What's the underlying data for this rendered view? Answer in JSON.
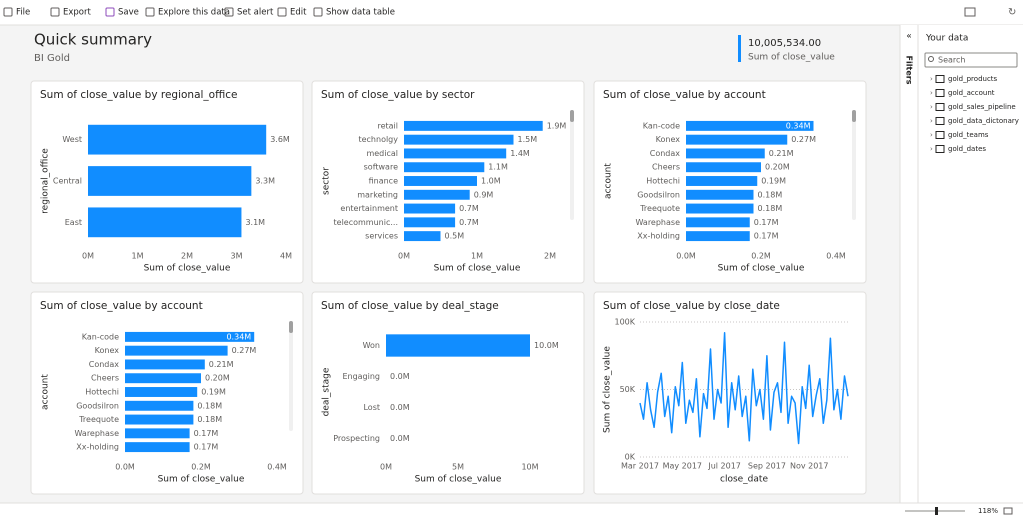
{
  "toolbar": {
    "items": [
      "File",
      "Export",
      "Save",
      "Explore this data",
      "Set alert",
      "Edit",
      "Show data table"
    ]
  },
  "header": {
    "title": "Quick summary",
    "subtitle": "BI Gold"
  },
  "kpi": {
    "value": "10,005,534.00",
    "label": "Sum of close_value"
  },
  "filters_tab": "Filters",
  "data_pane": {
    "title": "Your data",
    "search_placeholder": "Search",
    "tables": [
      "gold_products",
      "gold_account",
      "gold_sales_pipeline",
      "gold_data_dictonary",
      "gold_teams",
      "gold_dates"
    ]
  },
  "zoom": "118%",
  "chart_data": [
    {
      "type": "bar",
      "title": "Sum of close_value by regional_office",
      "x_label": "Sum of close_value",
      "y_label": "regional_office",
      "categories": [
        "West",
        "Central",
        "East"
      ],
      "values": [
        3600000,
        3300000,
        3100000
      ],
      "value_labels": [
        "3.6M",
        "3.3M",
        "3.1M"
      ],
      "color": "#118dff",
      "xlim": [
        0,
        4000000
      ],
      "xticks": [
        {
          "value": 0,
          "label": "0M"
        },
        {
          "value": 1000000,
          "label": "1M"
        },
        {
          "value": 2000000,
          "label": "2M"
        },
        {
          "value": 3000000,
          "label": "3M"
        },
        {
          "value": 4000000,
          "label": "4M"
        }
      ]
    },
    {
      "type": "bar",
      "title": "Sum of close_value by sector",
      "x_label": "Sum of close_value",
      "y_label": "sector",
      "categories": [
        "retail",
        "technolgy",
        "medical",
        "software",
        "finance",
        "marketing",
        "entertainment",
        "telecommunic...",
        "services"
      ],
      "values": [
        1900000,
        1500000,
        1400000,
        1100000,
        1000000,
        900000,
        700000,
        700000,
        500000
      ],
      "value_labels": [
        "1.9M",
        "1.5M",
        "1.4M",
        "1.1M",
        "1.0M",
        "0.9M",
        "0.7M",
        "0.7M",
        "0.5M"
      ],
      "color": "#118dff",
      "xlim": [
        0,
        2000000
      ],
      "xticks": [
        {
          "value": 0,
          "label": "0M"
        },
        {
          "value": 1000000,
          "label": "1M"
        },
        {
          "value": 2000000,
          "label": "2M"
        }
      ]
    },
    {
      "type": "bar",
      "title": "Sum of close_value by account",
      "x_label": "Sum of close_value",
      "y_label": "account",
      "categories": [
        "Kan-code",
        "Konex",
        "Condax",
        "Cheers",
        "Hottechi",
        "Goodsilron",
        "Treequote",
        "Warephase",
        "Xx-holding"
      ],
      "values": [
        340000,
        270000,
        210000,
        200000,
        190000,
        180000,
        180000,
        170000,
        170000
      ],
      "value_labels": [
        "0.34M",
        "0.27M",
        "0.21M",
        "0.20M",
        "0.19M",
        "0.18M",
        "0.18M",
        "0.17M",
        "0.17M"
      ],
      "color": "#118dff",
      "xlim": [
        0,
        400000
      ],
      "xticks": [
        {
          "value": 0,
          "label": "0.0M"
        },
        {
          "value": 200000,
          "label": "0.2M"
        },
        {
          "value": 400000,
          "label": "0.4M"
        }
      ]
    },
    {
      "type": "bar",
      "title": "Sum of close_value by account",
      "x_label": "Sum of close_value",
      "y_label": "account",
      "categories": [
        "Kan-code",
        "Konex",
        "Condax",
        "Cheers",
        "Hottechi",
        "Goodsilron",
        "Treequote",
        "Warephase",
        "Xx-holding"
      ],
      "values": [
        340000,
        270000,
        210000,
        200000,
        190000,
        180000,
        180000,
        170000,
        170000
      ],
      "value_labels": [
        "0.34M",
        "0.27M",
        "0.21M",
        "0.20M",
        "0.19M",
        "0.18M",
        "0.18M",
        "0.17M",
        "0.17M"
      ],
      "color": "#118dff",
      "xlim": [
        0,
        400000
      ],
      "xticks": [
        {
          "value": 0,
          "label": "0.0M"
        },
        {
          "value": 200000,
          "label": "0.2M"
        },
        {
          "value": 400000,
          "label": "0.4M"
        }
      ]
    },
    {
      "type": "bar",
      "title": "Sum of close_value by deal_stage",
      "x_label": "Sum of close_value",
      "y_label": "deal_stage",
      "categories": [
        "Won",
        "Engaging",
        "Lost",
        "Prospecting"
      ],
      "values": [
        10000000,
        0,
        0,
        0
      ],
      "value_labels": [
        "10.0M",
        "0.0M",
        "0.0M",
        "0.0M"
      ],
      "color": "#118dff",
      "xlim": [
        0,
        10000000
      ],
      "xticks": [
        {
          "value": 0,
          "label": "0M"
        },
        {
          "value": 5000000,
          "label": "5M"
        },
        {
          "value": 10000000,
          "label": "10M"
        }
      ]
    },
    {
      "type": "line",
      "title": "Sum of close_value by close_date",
      "x_label": "close_date",
      "y_label": "Sum of close_value",
      "categories": [
        null,
        null,
        null,
        null,
        null,
        null,
        null,
        null,
        null,
        null,
        null,
        null,
        null,
        null,
        null,
        null,
        null,
        null,
        null,
        null,
        null,
        null,
        null,
        null,
        null,
        null,
        null,
        null,
        null,
        null,
        null,
        null,
        null,
        null,
        null,
        null,
        null,
        null,
        null,
        null,
        null,
        null,
        null,
        null,
        null,
        null,
        null,
        null,
        null,
        null,
        null,
        null,
        null,
        null,
        null,
        null,
        null,
        null,
        null,
        null
      ],
      "values": [
        40000,
        28000,
        55000,
        35000,
        22000,
        48000,
        62000,
        30000,
        45000,
        18000,
        52000,
        38000,
        70000,
        25000,
        42000,
        33000,
        58000,
        15000,
        47000,
        36000,
        80000,
        28000,
        50000,
        40000,
        92000,
        22000,
        55000,
        35000,
        60000,
        30000,
        45000,
        12000,
        65000,
        38000,
        50000,
        28000,
        75000,
        20000,
        48000,
        55000,
        33000,
        85000,
        25000,
        45000,
        40000,
        10000,
        52000,
        36000,
        68000,
        30000,
        46000,
        58000,
        25000,
        42000,
        88000,
        35000,
        50000,
        28000,
        60000,
        45000
      ],
      "color": "#118dff",
      "ylim": [
        0,
        100000
      ],
      "yticks": [
        {
          "value": 0,
          "label": "0K"
        },
        {
          "value": 50000,
          "label": "50K"
        },
        {
          "value": 100000,
          "label": "100K"
        }
      ],
      "xticks": [
        {
          "value": 0,
          "label": "Mar 2017"
        },
        {
          "value": 12,
          "label": "May 2017"
        },
        {
          "value": 24,
          "label": "Jul 2017"
        },
        {
          "value": 36,
          "label": "Sep 2017"
        },
        {
          "value": 48,
          "label": "Nov 2017"
        }
      ],
      "grid": true
    }
  ]
}
